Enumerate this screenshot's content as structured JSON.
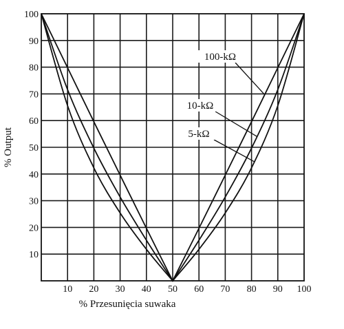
{
  "chart_data": {
    "type": "line",
    "title": "",
    "xlabel": "% Przesunięcia suwaka",
    "ylabel": "% Output",
    "xlim": [
      0,
      100
    ],
    "ylim": [
      0,
      100
    ],
    "x_ticks": [
      "10",
      "20",
      "30",
      "40",
      "50",
      "60",
      "70",
      "80",
      "90",
      "100"
    ],
    "y_ticks": [
      "10",
      "20",
      "30",
      "40",
      "50",
      "60",
      "70",
      "80",
      "90",
      "100"
    ],
    "grid": true,
    "series": [
      {
        "name": "100-kΩ",
        "x": [
          0,
          10,
          20,
          30,
          40,
          50,
          60,
          70,
          80,
          90,
          100
        ],
        "y": [
          100,
          79.8,
          59.6,
          39.6,
          19.7,
          0,
          19.7,
          39.6,
          59.6,
          79.8,
          100
        ]
      },
      {
        "name": "10-kΩ",
        "x": [
          0,
          10,
          20,
          30,
          40,
          50,
          60,
          70,
          80,
          90,
          100
        ],
        "y": [
          100,
          71.6,
          49.7,
          31.4,
          15.2,
          0,
          15.2,
          31.4,
          49.7,
          71.6,
          100
        ]
      },
      {
        "name": "5-kΩ",
        "x": [
          0,
          10,
          20,
          30,
          40,
          50,
          60,
          70,
          80,
          90,
          100
        ],
        "y": [
          100,
          65.6,
          42.3,
          25.4,
          11.8,
          0,
          11.8,
          25.4,
          42.3,
          65.6,
          100
        ]
      }
    ],
    "annotations": [
      {
        "text": "100-kΩ",
        "series": 0,
        "at_x": 85
      },
      {
        "text": "10-kΩ",
        "series": 1,
        "at_x": 82
      },
      {
        "text": "5-kΩ",
        "series": 2,
        "at_x": 81
      }
    ]
  }
}
